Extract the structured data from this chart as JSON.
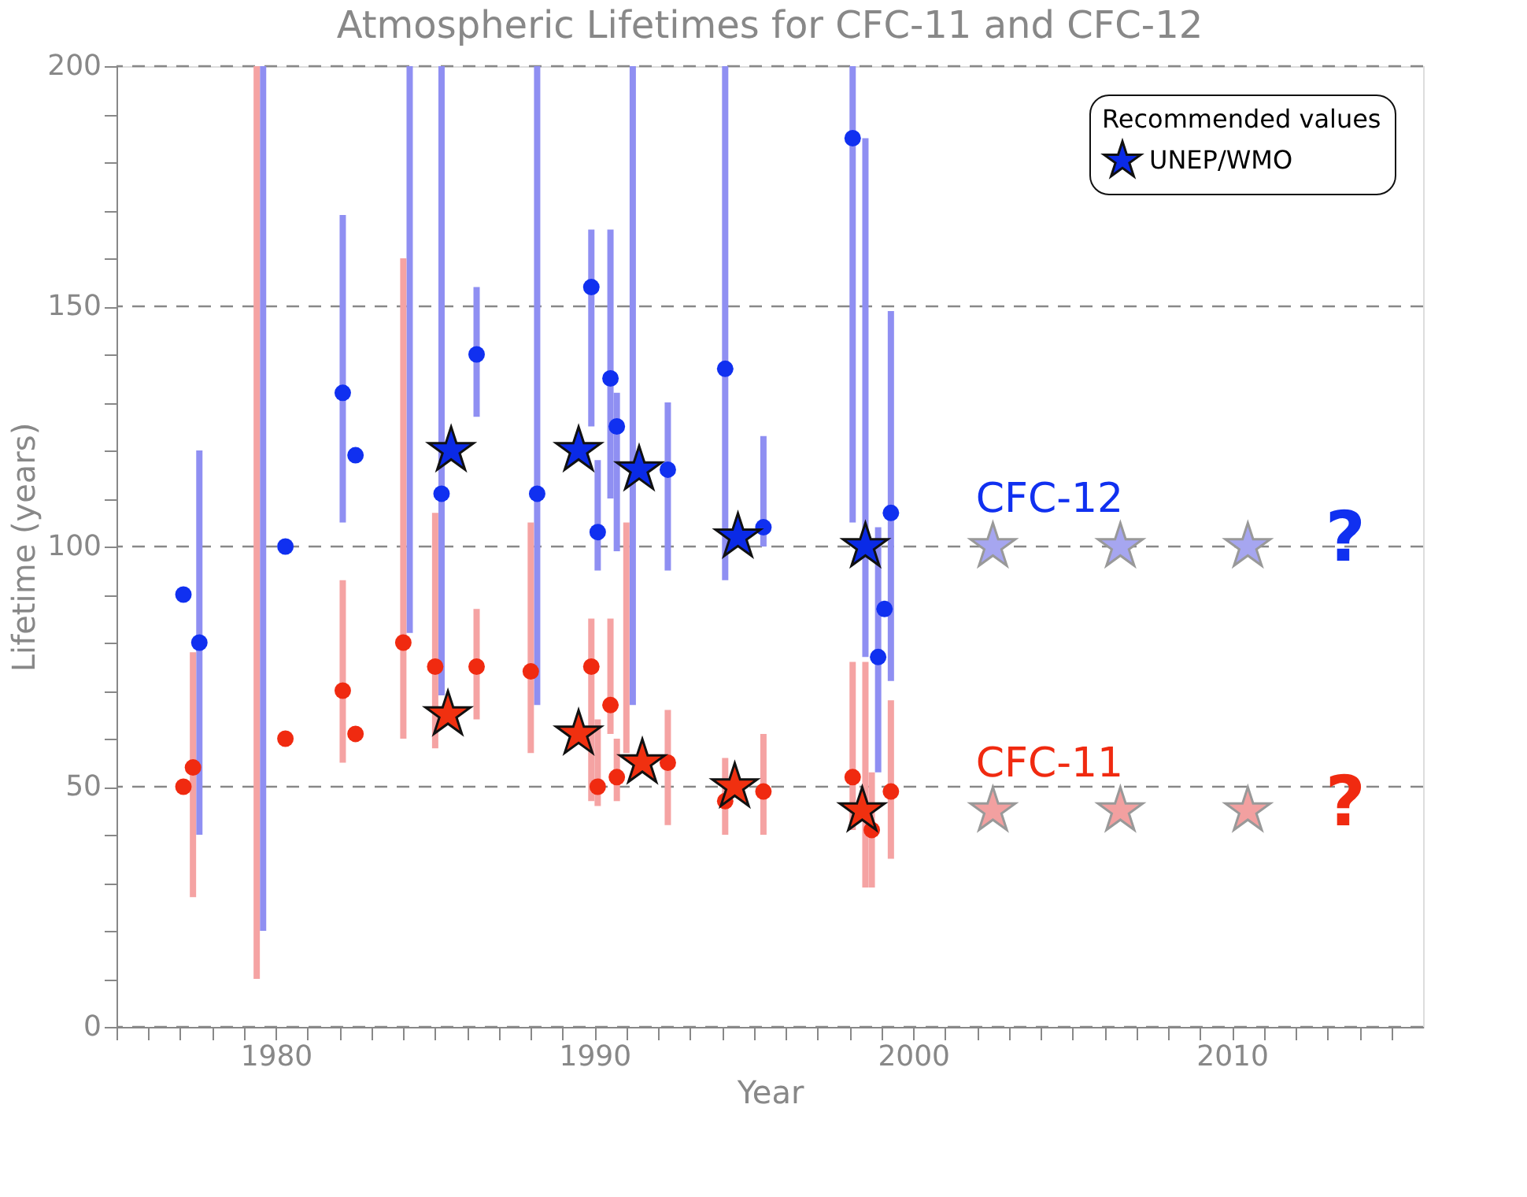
{
  "chart_data": {
    "type": "scatter",
    "title": "Atmospheric Lifetimes for CFC-11 and CFC-12",
    "xlabel": "Year",
    "ylabel": "Lifetime (years)",
    "legend_title": "Recommended values",
    "legend": "top right",
    "grid": "y",
    "xlim": [
      1975,
      2016
    ],
    "ylim": [
      0,
      200
    ],
    "xticks": [
      {
        "value": 1975,
        "label": null
      },
      {
        "value": 1976,
        "label": null
      },
      {
        "value": 1977,
        "label": null
      },
      {
        "value": 1978,
        "label": null
      },
      {
        "value": 1979,
        "label": null
      },
      1980,
      {
        "value": 1981,
        "label": null
      },
      {
        "value": 1982,
        "label": null
      },
      {
        "value": 1983,
        "label": null
      },
      {
        "value": 1984,
        "label": null
      },
      {
        "value": 1985,
        "label": null
      },
      {
        "value": 1986,
        "label": null
      },
      {
        "value": 1987,
        "label": null
      },
      {
        "value": 1988,
        "label": null
      },
      {
        "value": 1989,
        "label": null
      },
      1990,
      {
        "value": 1991,
        "label": null
      },
      {
        "value": 1992,
        "label": null
      },
      {
        "value": 1993,
        "label": null
      },
      {
        "value": 1994,
        "label": null
      },
      {
        "value": 1995,
        "label": null
      },
      {
        "value": 1996,
        "label": null
      },
      {
        "value": 1997,
        "label": null
      },
      {
        "value": 1998,
        "label": null
      },
      {
        "value": 1999,
        "label": null
      },
      2000,
      {
        "value": 2001,
        "label": null
      },
      {
        "value": 2002,
        "label": null
      },
      {
        "value": 2003,
        "label": null
      },
      {
        "value": 2004,
        "label": null
      },
      {
        "value": 2005,
        "label": null
      },
      {
        "value": 2006,
        "label": null
      },
      {
        "value": 2007,
        "label": null
      },
      {
        "value": 2008,
        "label": null
      },
      {
        "value": 2009,
        "label": null
      },
      2010,
      {
        "value": 2011,
        "label": null
      },
      {
        "value": 2012,
        "label": null
      },
      {
        "value": 2013,
        "label": null
      },
      {
        "value": 2014,
        "label": null
      },
      {
        "value": 2015,
        "label": null
      }
    ],
    "yticks": [
      0,
      {
        "value": 10,
        "label": null
      },
      {
        "value": 20,
        "label": null
      },
      {
        "value": 30,
        "label": null
      },
      {
        "value": 40,
        "label": null
      },
      50,
      {
        "value": 60,
        "label": null
      },
      {
        "value": 70,
        "label": null
      },
      {
        "value": 80,
        "label": null
      },
      {
        "value": 90,
        "label": null
      },
      100,
      {
        "value": 110,
        "label": null
      },
      {
        "value": 120,
        "label": null
      },
      {
        "value": 130,
        "label": null
      },
      {
        "value": 140,
        "label": null
      },
      150,
      {
        "value": 160,
        "label": null
      },
      {
        "value": 170,
        "label": null
      },
      {
        "value": 180,
        "label": null
      },
      {
        "value": 190,
        "label": null
      },
      200
    ],
    "series": [
      {
        "type": "bar",
        "color": "#8f8ff2",
        "x": [
          1977.6,
          1979.6,
          1982.1,
          1984.2,
          1985.2,
          1986.3,
          1988.2,
          1989.9,
          1990.1,
          1990.5,
          1990.7,
          1991.2,
          1992.3,
          1994.1,
          1995.3,
          1998.1,
          1998.5,
          1998.9,
          1999.3
        ],
        "base": [
          40,
          20,
          105,
          82,
          69,
          127,
          67,
          125,
          95,
          110,
          99,
          67,
          95,
          93,
          100,
          105,
          77,
          53,
          72
        ],
        "values": [
          80,
          180,
          64,
          118,
          131,
          27,
          133,
          41,
          23,
          56,
          33,
          133,
          35,
          107,
          23,
          95,
          108,
          51,
          77
        ]
      },
      {
        "type": "bar",
        "color": "#f5a3a3",
        "x": [
          1977.4,
          1979.4,
          1982.1,
          1984.0,
          1985.0,
          1986.3,
          1988.0,
          1989.9,
          1990.1,
          1990.5,
          1990.7,
          1991.0,
          1992.3,
          1994.1,
          1995.3,
          1998.1,
          1998.5,
          1998.7,
          1999.3
        ],
        "base": [
          27,
          10,
          55,
          60,
          58,
          64,
          57,
          47,
          46,
          61,
          47,
          57,
          42,
          40,
          40,
          41,
          29,
          29,
          35
        ],
        "values": [
          51,
          190,
          38,
          100,
          49,
          23,
          48,
          38,
          18,
          24,
          13,
          48,
          24,
          16,
          21,
          35,
          47,
          24,
          33
        ]
      },
      {
        "marker": "circle",
        "name": "CFC-12",
        "color": "#1030f0",
        "x": [
          1977.1,
          1977.6,
          1980.3,
          1982.1,
          1982.5,
          1985.2,
          1986.3,
          1988.2,
          1989.9,
          1990.1,
          1990.5,
          1990.7,
          1992.3,
          1994.1,
          1995.3,
          1998.1,
          1998.9,
          1999.1,
          1999.3
        ],
        "values": [
          90,
          80,
          100,
          132,
          119,
          111,
          140,
          111,
          154,
          103,
          135,
          125,
          116,
          137,
          104,
          185,
          77,
          87,
          107
        ]
      },
      {
        "marker": "circle",
        "name": "CFC-11",
        "color": "#f02a10",
        "x": [
          1977.1,
          1977.4,
          1980.3,
          1982.1,
          1982.5,
          1984.0,
          1985.0,
          1986.3,
          1988.0,
          1989.9,
          1990.1,
          1990.5,
          1990.7,
          1992.3,
          1994.1,
          1995.3,
          1998.1,
          1998.7,
          1999.3
        ],
        "values": [
          50,
          54,
          60,
          70,
          61,
          80,
          75,
          75,
          74,
          75,
          50,
          67,
          52,
          55,
          47,
          49,
          52,
          41,
          49
        ]
      },
      {
        "marker": "star",
        "name": "UNEP/WMO",
        "color": "#0a2ae6",
        "x": [
          1985.5,
          1989.5,
          1991.4,
          1994.5,
          1998.5
        ],
        "values": [
          120,
          120,
          116,
          102,
          100
        ]
      },
      {
        "marker": "star",
        "color": "#f03010",
        "x": [
          1985.4,
          1989.5,
          1991.5,
          1994.4,
          1998.4
        ],
        "values": [
          65,
          61,
          55,
          50,
          45
        ]
      },
      {
        "marker": "star",
        "color": "#a6a6f0",
        "x": [
          2002.5,
          2006.5,
          2010.5
        ],
        "values": [
          100,
          100,
          100
        ]
      },
      {
        "marker": "star",
        "color": "#f2a0a0",
        "x": [
          2002.5,
          2006.5,
          2010.5
        ],
        "values": [
          45,
          45,
          45
        ]
      }
    ],
    "annotations": [
      "?",
      "?"
    ]
  }
}
